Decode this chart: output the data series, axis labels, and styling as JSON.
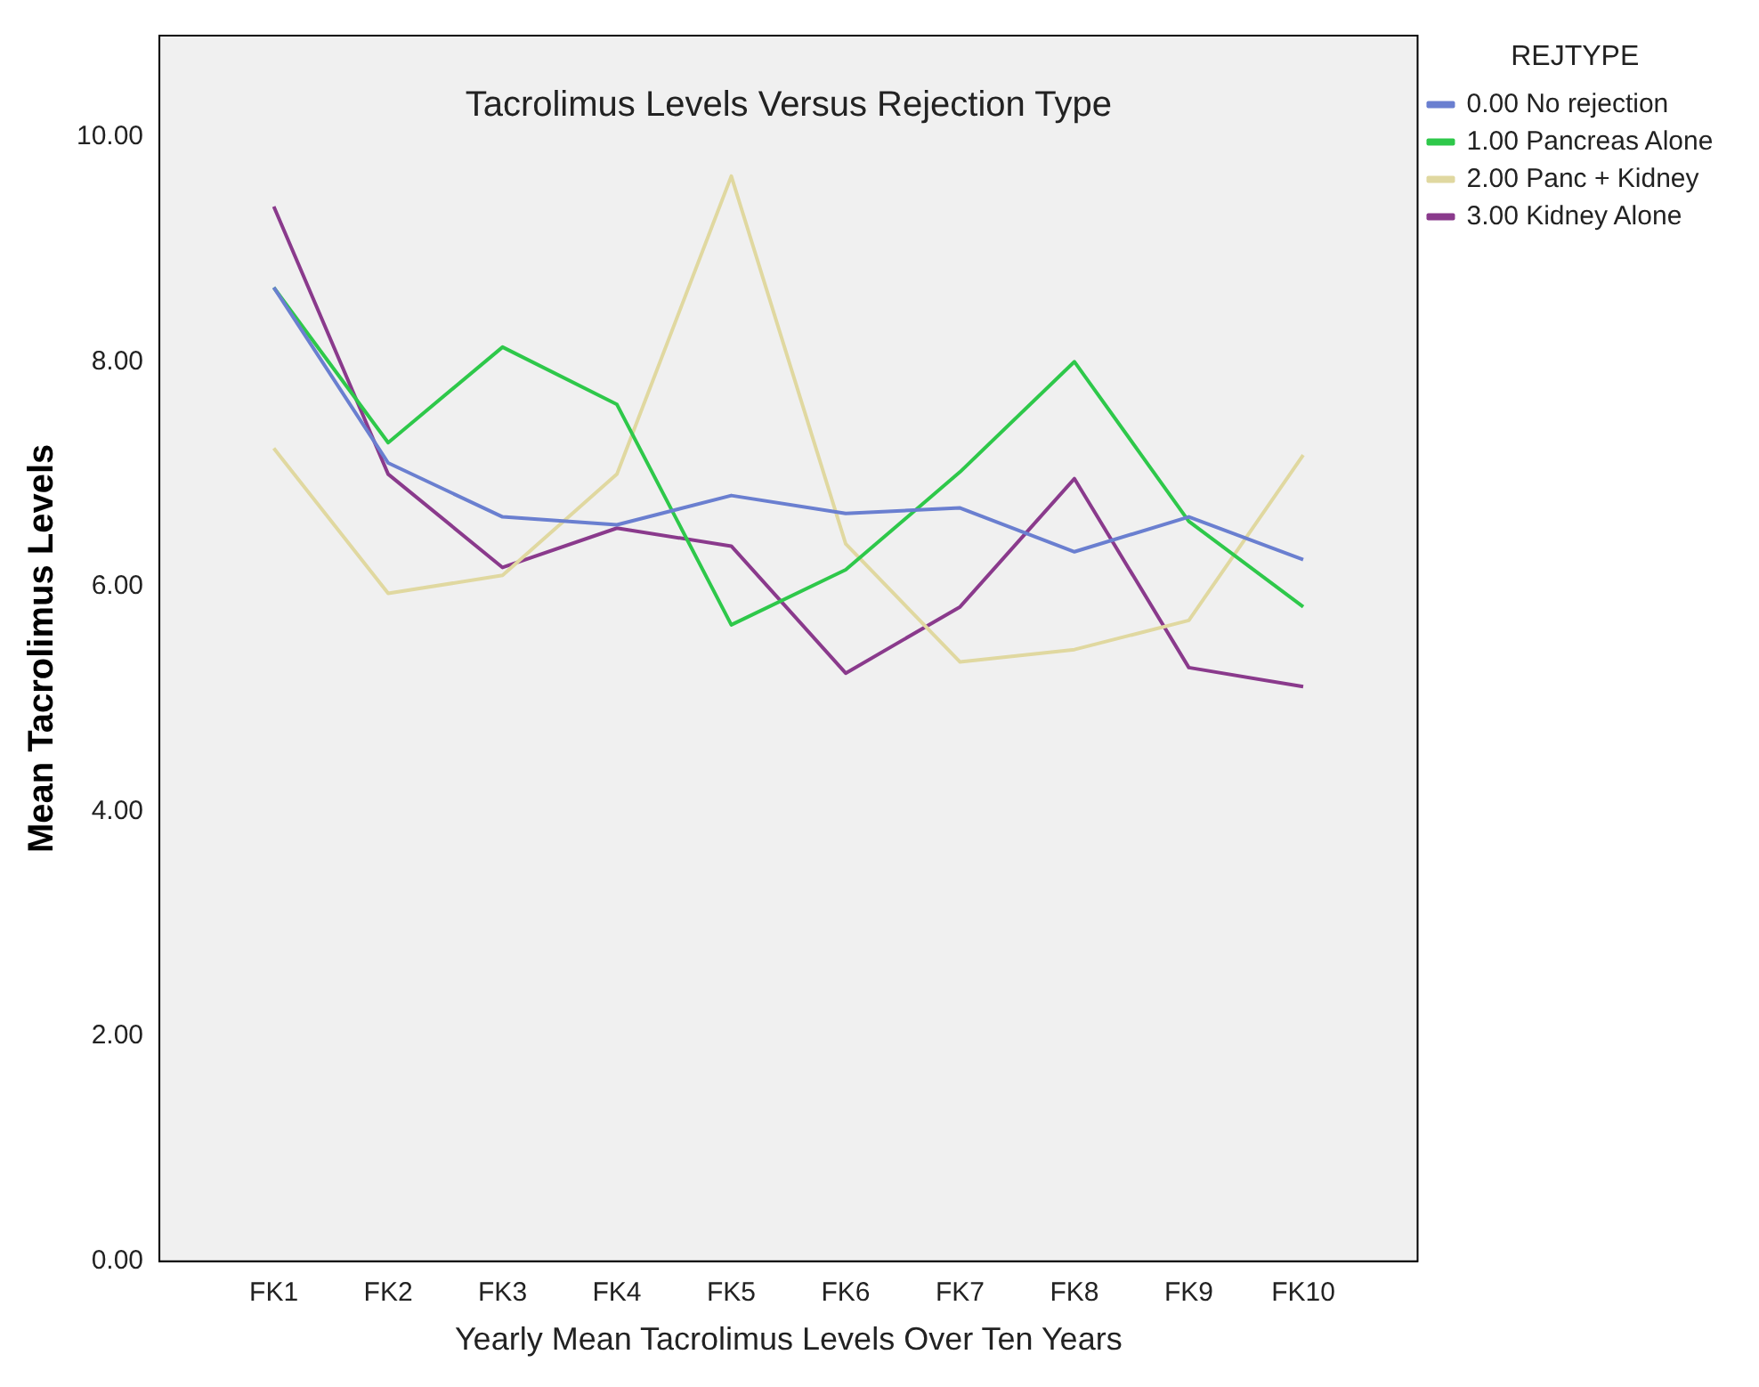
{
  "chart_data": {
    "type": "line",
    "title": "Tacrolimus Levels Versus Rejection Type",
    "xlabel": "Yearly Mean Tacrolimus Levels Over Ten Years",
    "ylabel": "Mean Tacrolimus Levels",
    "legend_title": "REJTYPE",
    "legend": "top right",
    "grid": false,
    "marker": "none",
    "line_style": "solid",
    "categories": [
      "FK1",
      "FK2",
      "FK3",
      "FK4",
      "FK5",
      "FK6",
      "FK7",
      "FK8",
      "FK9",
      "FK10"
    ],
    "ylim": [
      0,
      10.9
    ],
    "yticks": [
      {
        "value": 0,
        "label": "0.00"
      },
      {
        "value": 2,
        "label": "2.00"
      },
      {
        "value": 4,
        "label": "4.00"
      },
      {
        "value": 6,
        "label": "6.00"
      },
      {
        "value": 8,
        "label": "8.00"
      },
      {
        "value": 10,
        "label": "10.00"
      }
    ],
    "series": [
      {
        "name": "0.00 No rejection",
        "color": "#6a7fd0",
        "values": [
          8.66,
          7.1,
          6.62,
          6.55,
          6.81,
          6.65,
          6.7,
          6.31,
          6.62,
          6.24
        ]
      },
      {
        "name": "1.00 Pancreas Alone",
        "color": "#2ec84a",
        "values": [
          8.66,
          7.28,
          8.13,
          7.62,
          5.66,
          6.15,
          7.02,
          8.0,
          6.58,
          5.82
        ]
      },
      {
        "name": "2.00 Panc + Kidney",
        "color": "#e0d8a0",
        "values": [
          7.23,
          5.94,
          6.1,
          7.0,
          9.65,
          6.38,
          5.33,
          5.44,
          5.7,
          7.17
        ]
      },
      {
        "name": "3.00 Kidney Alone",
        "color": "#8a3a8c",
        "values": [
          9.38,
          7.0,
          6.17,
          6.52,
          6.36,
          5.23,
          5.82,
          6.96,
          5.28,
          5.11
        ]
      }
    ]
  }
}
